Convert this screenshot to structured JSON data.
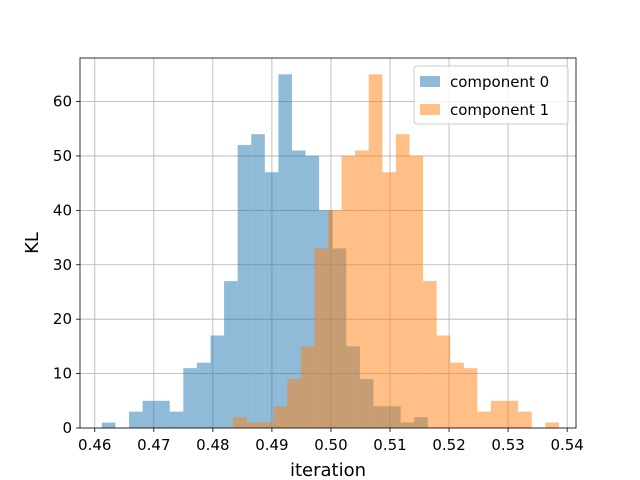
{
  "chart_data": {
    "type": "bar",
    "subtype": "overlapping-histogram",
    "title": "",
    "xlabel": "iteration",
    "ylabel": "KL",
    "xlim": [
      0.4575,
      0.5415
    ],
    "ylim": [
      0,
      68
    ],
    "xticks": [
      0.46,
      0.47,
      0.48,
      0.49,
      0.5,
      0.51,
      0.52,
      0.53,
      0.54
    ],
    "xtick_labels": [
      "0.46",
      "0.47",
      "0.48",
      "0.49",
      "0.50",
      "0.51",
      "0.52",
      "0.53",
      "0.54"
    ],
    "yticks": [
      0,
      10,
      20,
      30,
      40,
      50,
      60
    ],
    "ytick_labels": [
      "0",
      "10",
      "20",
      "30",
      "40",
      "50",
      "60"
    ],
    "grid": true,
    "legend": "top-right",
    "bar_opacity": 0.5,
    "series": [
      {
        "name": "component 0",
        "color": "#1f77b4",
        "bin_start": 0.4612,
        "bin_width": 0.0023,
        "counts": [
          1,
          0,
          3,
          5,
          5,
          3,
          11,
          12,
          17,
          27,
          52,
          54,
          47,
          65,
          51,
          50,
          40,
          33,
          15,
          9,
          4,
          4,
          1,
          2
        ]
      },
      {
        "name": "component 1",
        "color": "#ff7f0e",
        "bin_start": 0.4834,
        "bin_width": 0.0023,
        "counts": [
          2,
          1,
          1,
          4,
          9,
          15,
          33,
          40,
          50,
          51,
          65,
          47,
          54,
          50,
          27,
          17,
          12,
          11,
          3,
          5,
          5,
          3,
          0,
          1
        ]
      }
    ]
  }
}
